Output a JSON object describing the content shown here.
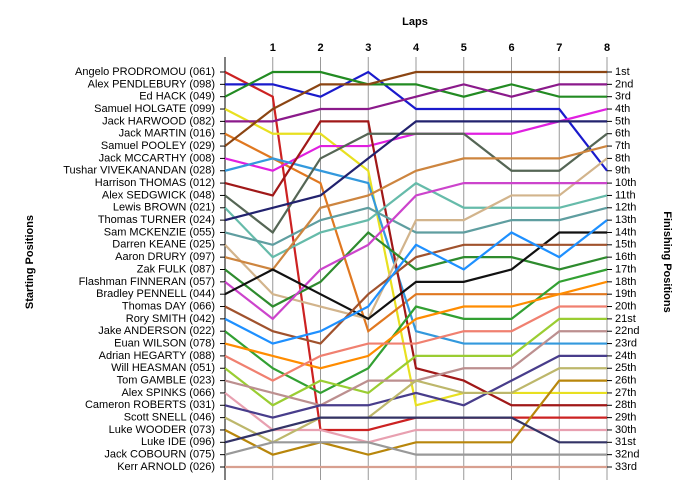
{
  "chart_data": {
    "type": "line",
    "title": "Laps",
    "y_label": "Starting Positions",
    "y2_label": "Finishing Positions",
    "x": [
      0,
      1,
      2,
      3,
      4,
      5,
      6,
      7,
      8
    ],
    "xlim": [
      0,
      8
    ],
    "xticks": [
      1,
      2,
      3,
      4,
      5,
      6,
      7,
      8
    ],
    "ylim": [
      33,
      1
    ],
    "y2lim": [
      33,
      1
    ],
    "y2ticks": [
      {
        "value": 1,
        "label": "1st"
      },
      {
        "value": 2,
        "label": "2nd"
      },
      {
        "value": 3,
        "label": "3rd"
      },
      {
        "value": 4,
        "label": "4th"
      },
      {
        "value": 5,
        "label": "5th"
      },
      {
        "value": 6,
        "label": "6th"
      },
      {
        "value": 7,
        "label": "7th"
      },
      {
        "value": 8,
        "label": "8th"
      },
      {
        "value": 9,
        "label": "9th"
      },
      {
        "value": 10,
        "label": "10th"
      },
      {
        "value": 11,
        "label": "11th"
      },
      {
        "value": 12,
        "label": "12th"
      },
      {
        "value": 13,
        "label": "13th"
      },
      {
        "value": 14,
        "label": "14th"
      },
      {
        "value": 15,
        "label": "15th"
      },
      {
        "value": 16,
        "label": "16th"
      },
      {
        "value": 17,
        "label": "17th"
      },
      {
        "value": 18,
        "label": "18th"
      },
      {
        "value": 19,
        "label": "19th"
      },
      {
        "value": 20,
        "label": "20th"
      },
      {
        "value": 21,
        "label": "21st"
      },
      {
        "value": 22,
        "label": "22nd"
      },
      {
        "value": 23,
        "label": "23rd"
      },
      {
        "value": 24,
        "label": "24th"
      },
      {
        "value": 25,
        "label": "25th"
      },
      {
        "value": 26,
        "label": "26th"
      },
      {
        "value": 27,
        "label": "27th"
      },
      {
        "value": 28,
        "label": "28th"
      },
      {
        "value": 29,
        "label": "29th"
      },
      {
        "value": 30,
        "label": "30th"
      },
      {
        "value": 31,
        "label": "31st"
      },
      {
        "value": 32,
        "label": "32nd"
      },
      {
        "value": 33,
        "label": "33rd"
      }
    ],
    "grid": true,
    "series": [
      {
        "name": "Angelo PRODROMOU (061)",
        "color": "#cc2222",
        "values": [
          1,
          3,
          30,
          30,
          29,
          29,
          29,
          29,
          29
        ]
      },
      {
        "name": "Alex PENDLEBURY (098)",
        "color": "#1a1acc",
        "values": [
          2,
          2,
          3,
          1,
          4,
          4,
          4,
          4,
          9
        ]
      },
      {
        "name": "Ed HACK (049)",
        "color": "#228b22",
        "values": [
          3,
          1,
          1,
          2,
          2,
          3,
          2,
          3,
          3
        ]
      },
      {
        "name": "Samuel HOLGATE (099)",
        "color": "#e8e020",
        "values": [
          4,
          6,
          6,
          9,
          28,
          27,
          27,
          27,
          27
        ]
      },
      {
        "name": "Jack HARWOOD (082)",
        "color": "#8b1a8b",
        "values": [
          5,
          5,
          4,
          4,
          3,
          2,
          3,
          2,
          2
        ]
      },
      {
        "name": "Jack MARTIN (016)",
        "color": "#e07820",
        "values": [
          6,
          8,
          10,
          22,
          19,
          19,
          19,
          19,
          19
        ]
      },
      {
        "name": "Samuel POOLEY (029)",
        "color": "#8b4513",
        "values": [
          7,
          4,
          2,
          2,
          1,
          1,
          1,
          1,
          1
        ]
      },
      {
        "name": "Jack MCCARTHY (008)",
        "color": "#e020e0",
        "values": [
          8,
          9,
          7,
          7,
          6,
          6,
          6,
          5,
          4
        ]
      },
      {
        "name": "Tushar VIVEKANANDAN (028)",
        "color": "#3399dd",
        "values": [
          9,
          8,
          9,
          10,
          22,
          23,
          23,
          23,
          23
        ]
      },
      {
        "name": "Harrison THOMAS (012)",
        "color": "#a01818",
        "values": [
          10,
          11,
          5,
          5,
          25,
          26,
          28,
          28,
          28
        ]
      },
      {
        "name": "Alex SEDGWICK (048)",
        "color": "#556655",
        "values": [
          11,
          14,
          8,
          6,
          6,
          6,
          9,
          9,
          6
        ]
      },
      {
        "name": "Lewis BROWN (021)",
        "color": "#66bbaa",
        "values": [
          12,
          16,
          14,
          13,
          10,
          12,
          12,
          12,
          11
        ]
      },
      {
        "name": "Thomas TURNER (024)",
        "color": "#22226e",
        "values": [
          13,
          12,
          11,
          8,
          5,
          5,
          5,
          5,
          5
        ]
      },
      {
        "name": "Sam MCKENZIE (055)",
        "color": "#5f9ea0",
        "values": [
          14,
          15,
          13,
          12,
          14,
          14,
          13,
          13,
          12
        ]
      },
      {
        "name": "Darren KEANE (025)",
        "color": "#d2b48c",
        "values": [
          15,
          19,
          20,
          21,
          13,
          13,
          11,
          11,
          8
        ]
      },
      {
        "name": "Aaron DRURY (097)",
        "color": "#cd853f",
        "values": [
          16,
          17,
          12,
          11,
          9,
          8,
          8,
          8,
          7
        ]
      },
      {
        "name": "Zak FULK (087)",
        "color": "#2e8b2e",
        "values": [
          17,
          20,
          18,
          14,
          17,
          16,
          16,
          17,
          16
        ]
      },
      {
        "name": "Flashman FINNERAN (057)",
        "color": "#cc44cc",
        "values": [
          18,
          21,
          17,
          15,
          11,
          10,
          10,
          10,
          10
        ]
      },
      {
        "name": "Bradley PENNELL (044)",
        "color": "#111111",
        "values": [
          19,
          17,
          19,
          21,
          18,
          18,
          17,
          14,
          14
        ]
      },
      {
        "name": "Thomas DAY (066)",
        "color": "#a0522d",
        "values": [
          20,
          22,
          23,
          19,
          16,
          15,
          15,
          15,
          15
        ]
      },
      {
        "name": "Rory SMITH (042)",
        "color": "#1e90ff",
        "values": [
          21,
          23,
          22,
          20,
          15,
          17,
          14,
          16,
          13
        ]
      },
      {
        "name": "Jake ANDERSON (022)",
        "color": "#32a032",
        "values": [
          22,
          25,
          27,
          25,
          20,
          21,
          21,
          18,
          17
        ]
      },
      {
        "name": "Euan WILSON (078)",
        "color": "#ff8c00",
        "values": [
          23,
          24,
          25,
          24,
          21,
          20,
          20,
          19,
          18
        ]
      },
      {
        "name": "Adrian HEGARTY (088)",
        "color": "#f08070",
        "values": [
          24,
          26,
          24,
          23,
          23,
          22,
          22,
          20,
          20
        ]
      },
      {
        "name": "Will HEASMAN (051)",
        "color": "#9acd32",
        "values": [
          25,
          28,
          26,
          27,
          24,
          24,
          24,
          21,
          21
        ]
      },
      {
        "name": "Tom GAMBLE (023)",
        "color": "#bc8f8f",
        "values": [
          26,
          27,
          28,
          26,
          26,
          25,
          25,
          22,
          22
        ]
      },
      {
        "name": "Alex SPINKS (066)",
        "color": "#e8a0b0",
        "values": [
          27,
          30,
          30,
          31,
          30,
          30,
          30,
          30,
          30
        ]
      },
      {
        "name": "Cameron ROBERTS (031)",
        "color": "#483d8b",
        "values": [
          28,
          29,
          28,
          28,
          27,
          28,
          26,
          24,
          24
        ]
      },
      {
        "name": "Scott SNELL (046)",
        "color": "#bdb76b",
        "values": [
          29,
          31,
          29,
          29,
          26,
          27,
          27,
          25,
          25
        ]
      },
      {
        "name": "Luke WOODER (073)",
        "color": "#b8860b",
        "values": [
          30,
          32,
          31,
          32,
          31,
          31,
          31,
          26,
          26
        ]
      },
      {
        "name": "Luke IDE (096)",
        "color": "#333366",
        "values": [
          31,
          30,
          29,
          29,
          29,
          29,
          29,
          31,
          31
        ]
      },
      {
        "name": "Jack COBOURN (075)",
        "color": "#999999",
        "values": [
          32,
          31,
          31,
          31,
          32,
          32,
          32,
          32,
          32
        ]
      },
      {
        "name": "Kerr ARNOLD (026)",
        "color": "#d8a090",
        "values": [
          33,
          33,
          33,
          33,
          33,
          33,
          33,
          33,
          33
        ]
      }
    ]
  }
}
